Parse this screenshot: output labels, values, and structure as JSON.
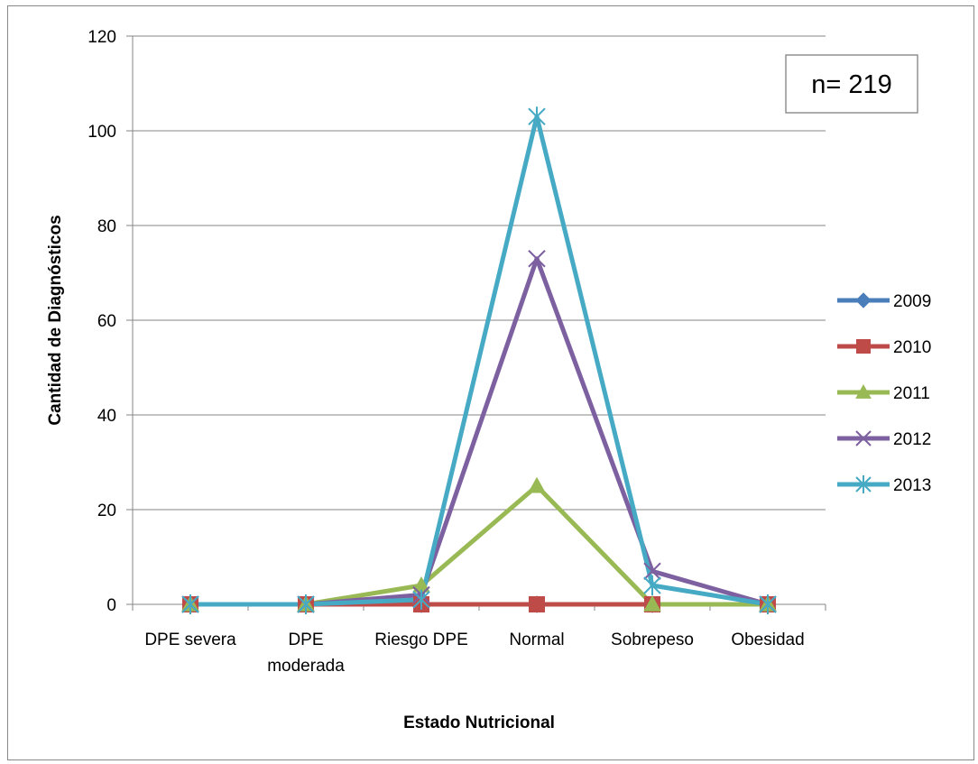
{
  "chart_data": {
    "type": "line",
    "categories": [
      [
        "DPE severa"
      ],
      [
        "DPE",
        "moderada"
      ],
      [
        "Riesgo DPE"
      ],
      [
        "Normal"
      ],
      [
        "Sobrepeso"
      ],
      [
        "Obesidad"
      ]
    ],
    "series": [
      {
        "name": "2009",
        "values": [
          0,
          0,
          0,
          0,
          0,
          0
        ],
        "color": "#4a7ebb",
        "marker": "diamond"
      },
      {
        "name": "2010",
        "values": [
          0,
          0,
          0,
          0,
          0,
          0
        ],
        "color": "#be4b48",
        "marker": "square"
      },
      {
        "name": "2011",
        "values": [
          0,
          0,
          4,
          25,
          0,
          0
        ],
        "color": "#98b954",
        "marker": "triangle"
      },
      {
        "name": "2012",
        "values": [
          0,
          0,
          2,
          73,
          7,
          0
        ],
        "color": "#7d60a0",
        "marker": "x"
      },
      {
        "name": "2013",
        "values": [
          0,
          0,
          1,
          103,
          4,
          0
        ],
        "color": "#46aac5",
        "marker": "star"
      }
    ],
    "title": "",
    "xlabel": "Estado Nutricional",
    "ylabel": "Cantidad de Diagnósticos",
    "ylim": [
      0,
      120
    ],
    "yticks": [
      "0",
      "20",
      "40",
      "60",
      "80",
      "100",
      "120"
    ],
    "grid": true,
    "legend_position": "right",
    "annotation": "n= 219"
  }
}
